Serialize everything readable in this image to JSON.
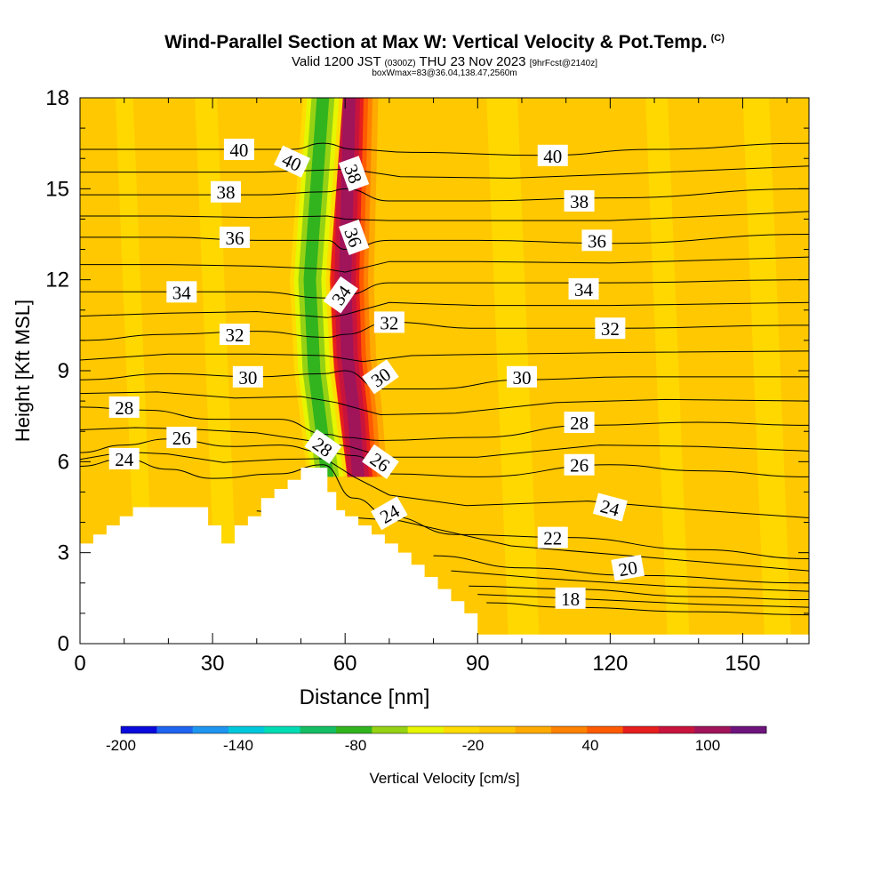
{
  "header": {
    "title": "Wind-Parallel Section at Max W: Vertical Velocity & Pot.Temp.",
    "title_mark": "(C)",
    "subtitle_a": "Valid 1200 JST",
    "subtitle_b": "(0300Z)",
    "subtitle_c": "THU 23 Nov 2023",
    "subtitle_d": "[9hrFcst@2140z]",
    "subtitle2": "boxWmax=83@36.04,138.47,2560m"
  },
  "chart_data": {
    "type": "heatmap",
    "xlabel": "Distance [nm]",
    "ylabel": "Height [Kft MSL]",
    "xlim": [
      0,
      165
    ],
    "ylim": [
      0,
      18
    ],
    "x_ticks": [
      0,
      30,
      60,
      90,
      120,
      150
    ],
    "y_ticks": [
      0,
      3,
      6,
      9,
      12,
      15,
      18
    ],
    "colorbar": {
      "label": "Vertical Velocity [cm/s]",
      "min": -200,
      "max": 130,
      "step": 20,
      "tick_values": [
        -200,
        -140,
        -80,
        -20,
        40,
        100
      ],
      "tick_labels": [
        "-200",
        "-140",
        "-80",
        "-20",
        "40",
        "100"
      ],
      "colors": [
        "#0a0adc",
        "#1e64f0",
        "#1e96f0",
        "#00c8dc",
        "#00dcb4",
        "#14be64",
        "#32b41e",
        "#96d214",
        "#e6f500",
        "#ffdc00",
        "#ffc800",
        "#ffaa00",
        "#ff8200",
        "#ff5a00",
        "#e61e1e",
        "#c8143c",
        "#a0145a",
        "#6e147d"
      ]
    },
    "background_color": "#ffc800",
    "terrain": {
      "x": [
        0,
        3,
        3,
        6,
        6,
        9,
        9,
        12,
        12,
        18,
        18,
        26,
        26,
        29,
        29,
        32,
        32,
        35,
        35,
        38,
        38,
        41,
        41,
        44,
        44,
        47,
        47,
        50,
        50,
        53,
        53,
        56,
        56,
        58,
        58,
        60,
        60,
        63,
        63,
        66,
        66,
        69,
        69,
        72,
        72,
        75,
        75,
        78,
        78,
        81,
        81,
        84,
        84,
        87,
        87,
        90,
        90
      ],
      "y": [
        3.3,
        3.3,
        3.6,
        3.6,
        3.9,
        3.9,
        4.2,
        4.2,
        4.5,
        4.5,
        4.5,
        4.5,
        4.5,
        4.5,
        3.9,
        3.9,
        3.3,
        3.3,
        3.9,
        3.9,
        4.2,
        4.2,
        4.8,
        4.8,
        5.1,
        5.1,
        5.4,
        5.4,
        5.8,
        5.8,
        5.8,
        5.8,
        5.0,
        5.0,
        4.4,
        4.4,
        4.2,
        4.2,
        3.9,
        3.9,
        3.6,
        3.6,
        3.3,
        3.3,
        3.0,
        3.0,
        2.6,
        2.6,
        2.2,
        2.2,
        1.8,
        1.8,
        1.4,
        1.4,
        1.0,
        1.0,
        0.3
      ],
      "floor": 0.3
    },
    "wave": {
      "updraft": [
        [
          63,
          5.5,
          0
        ],
        [
          62,
          7.5,
          0
        ],
        [
          60.5,
          9.5,
          0
        ],
        [
          60,
          12,
          0
        ],
        [
          60.5,
          15,
          0
        ],
        [
          61,
          18,
          0
        ]
      ],
      "downdraft": [
        [
          56,
          5.5,
          0
        ],
        [
          53,
          9,
          0
        ],
        [
          52,
          12,
          0
        ],
        [
          53.5,
          15,
          0
        ],
        [
          55,
          18,
          0
        ]
      ]
    },
    "isentropes": [
      {
        "theta": 18,
        "label": "18",
        "points": [
          [
            92,
            1.35
          ],
          [
            110,
            1.2
          ],
          [
            140,
            1.05
          ],
          [
            165,
            0.95
          ]
        ]
      },
      {
        "theta": 20,
        "label": "20",
        "points": [
          [
            88,
            1.9
          ],
          [
            110,
            1.8
          ],
          [
            140,
            1.55
          ],
          [
            165,
            1.45
          ]
        ]
      },
      {
        "theta": 22,
        "label": "22",
        "points": [
          [
            80,
            2.9
          ],
          [
            100,
            2.5
          ],
          [
            125,
            2.25
          ],
          [
            165,
            2.0
          ]
        ]
      },
      {
        "theta": 24,
        "label": "24",
        "points": [
          [
            0,
            5.85
          ],
          [
            10,
            6.1
          ],
          [
            20,
            5.75
          ],
          [
            30,
            5.45
          ],
          [
            45,
            5.6
          ],
          [
            55,
            5.9
          ],
          [
            62,
            4.8
          ],
          [
            70,
            4.2
          ],
          [
            85,
            3.6
          ],
          [
            110,
            3.5
          ],
          [
            140,
            3.1
          ],
          [
            165,
            2.8
          ]
        ]
      },
      {
        "theta": 26,
        "label": "26",
        "points": [
          [
            0,
            6.3
          ],
          [
            10,
            6.55
          ],
          [
            20,
            6.75
          ],
          [
            35,
            6.5
          ],
          [
            45,
            6.55
          ],
          [
            56,
            6.3
          ],
          [
            62,
            6.2
          ],
          [
            70,
            5.6
          ],
          [
            90,
            5.5
          ],
          [
            120,
            5.9
          ],
          [
            140,
            5.7
          ],
          [
            165,
            5.5
          ]
        ]
      },
      {
        "theta": 28,
        "label": "28",
        "points": [
          [
            0,
            7.8
          ],
          [
            15,
            7.7
          ],
          [
            30,
            7.4
          ],
          [
            45,
            7.4
          ],
          [
            56,
            6.9
          ],
          [
            60,
            6.8
          ],
          [
            68,
            6.7
          ],
          [
            90,
            6.8
          ],
          [
            115,
            7.2
          ],
          [
            140,
            7.3
          ],
          [
            165,
            7.2
          ]
        ]
      },
      {
        "theta": 30,
        "label": "30",
        "points": [
          [
            0,
            8.7
          ],
          [
            20,
            8.9
          ],
          [
            40,
            8.8
          ],
          [
            55,
            8.9
          ],
          [
            60,
            9.0
          ],
          [
            68,
            8.4
          ],
          [
            80,
            8.4
          ],
          [
            100,
            8.7
          ],
          [
            125,
            8.8
          ],
          [
            165,
            8.8
          ]
        ]
      },
      {
        "theta": 32,
        "label": "32",
        "points": [
          [
            0,
            10.0
          ],
          [
            20,
            10.2
          ],
          [
            40,
            10.3
          ],
          [
            56,
            10.1
          ],
          [
            60,
            10.2
          ],
          [
            70,
            10.6
          ],
          [
            90,
            10.4
          ],
          [
            120,
            10.4
          ],
          [
            165,
            10.5
          ]
        ]
      },
      {
        "theta": 34,
        "label": "34",
        "points": [
          [
            0,
            11.6
          ],
          [
            20,
            11.6
          ],
          [
            40,
            11.6
          ],
          [
            56,
            11.4
          ],
          [
            60,
            11.5
          ],
          [
            70,
            11.9
          ],
          [
            90,
            11.9
          ],
          [
            120,
            11.9
          ],
          [
            165,
            12.0
          ]
        ]
      },
      {
        "theta": 36,
        "label": "36",
        "points": [
          [
            0,
            13.4
          ],
          [
            20,
            13.4
          ],
          [
            40,
            13.3
          ],
          [
            56,
            13.3
          ],
          [
            60,
            13.0
          ],
          [
            70,
            13.3
          ],
          [
            90,
            13.3
          ],
          [
            120,
            13.2
          ],
          [
            165,
            13.5
          ]
        ]
      },
      {
        "theta": 38,
        "label": "38",
        "points": [
          [
            0,
            14.8
          ],
          [
            20,
            14.8
          ],
          [
            40,
            14.8
          ],
          [
            56,
            14.9
          ],
          [
            60,
            15.0
          ],
          [
            70,
            14.6
          ],
          [
            90,
            14.6
          ],
          [
            120,
            14.7
          ],
          [
            165,
            15.0
          ]
        ]
      },
      {
        "theta": 40,
        "label": "40",
        "points": [
          [
            0,
            16.3
          ],
          [
            20,
            16.3
          ],
          [
            40,
            16.3
          ],
          [
            48,
            16.3
          ],
          [
            55,
            16.5
          ],
          [
            62,
            16.3
          ],
          [
            75,
            16.2
          ],
          [
            105,
            16.1
          ],
          [
            130,
            16.3
          ],
          [
            165,
            16.5
          ]
        ]
      }
    ],
    "isentrope_labels": [
      {
        "text": "40",
        "x": 36,
        "y": 16.3,
        "angle": 0
      },
      {
        "text": "40",
        "x": 48,
        "y": 15.9,
        "angle": 25
      },
      {
        "text": "38",
        "x": 62,
        "y": 15.5,
        "angle": 70
      },
      {
        "text": "40",
        "x": 107,
        "y": 16.1,
        "angle": 0
      },
      {
        "text": "38",
        "x": 33,
        "y": 14.9,
        "angle": 0
      },
      {
        "text": "38",
        "x": 113,
        "y": 14.6,
        "angle": 0
      },
      {
        "text": "36",
        "x": 35,
        "y": 13.4,
        "angle": 0
      },
      {
        "text": "36",
        "x": 62,
        "y": 13.4,
        "angle": 70
      },
      {
        "text": "36",
        "x": 117,
        "y": 13.3,
        "angle": 0
      },
      {
        "text": "34",
        "x": 23,
        "y": 11.6,
        "angle": 0
      },
      {
        "text": "34",
        "x": 59,
        "y": 11.5,
        "angle": -55
      },
      {
        "text": "34",
        "x": 114,
        "y": 11.7,
        "angle": 0
      },
      {
        "text": "32",
        "x": 35,
        "y": 10.2,
        "angle": 0
      },
      {
        "text": "32",
        "x": 70,
        "y": 10.6,
        "angle": 0
      },
      {
        "text": "32",
        "x": 120,
        "y": 10.4,
        "angle": 0
      },
      {
        "text": "30",
        "x": 38,
        "y": 8.8,
        "angle": 0
      },
      {
        "text": "30",
        "x": 68,
        "y": 8.8,
        "angle": -35
      },
      {
        "text": "30",
        "x": 100,
        "y": 8.8,
        "angle": 0
      },
      {
        "text": "28",
        "x": 10,
        "y": 7.8,
        "angle": 0
      },
      {
        "text": "28",
        "x": 55,
        "y": 6.5,
        "angle": 35
      },
      {
        "text": "28",
        "x": 113,
        "y": 7.3,
        "angle": 0
      },
      {
        "text": "26",
        "x": 23,
        "y": 6.8,
        "angle": 0
      },
      {
        "text": "26",
        "x": 68,
        "y": 6.0,
        "angle": 35
      },
      {
        "text": "26",
        "x": 113,
        "y": 5.9,
        "angle": 0
      },
      {
        "text": "24",
        "x": 10,
        "y": 6.1,
        "angle": 0
      },
      {
        "text": "24",
        "x": 70,
        "y": 4.3,
        "angle": -30
      },
      {
        "text": "24",
        "x": 120,
        "y": 4.5,
        "angle": 15
      },
      {
        "text": "22",
        "x": 107,
        "y": 3.5,
        "angle": 0
      },
      {
        "text": "20",
        "x": 124,
        "y": 2.5,
        "angle": -10
      },
      {
        "text": "18",
        "x": 111,
        "y": 1.5,
        "angle": 0
      }
    ]
  }
}
